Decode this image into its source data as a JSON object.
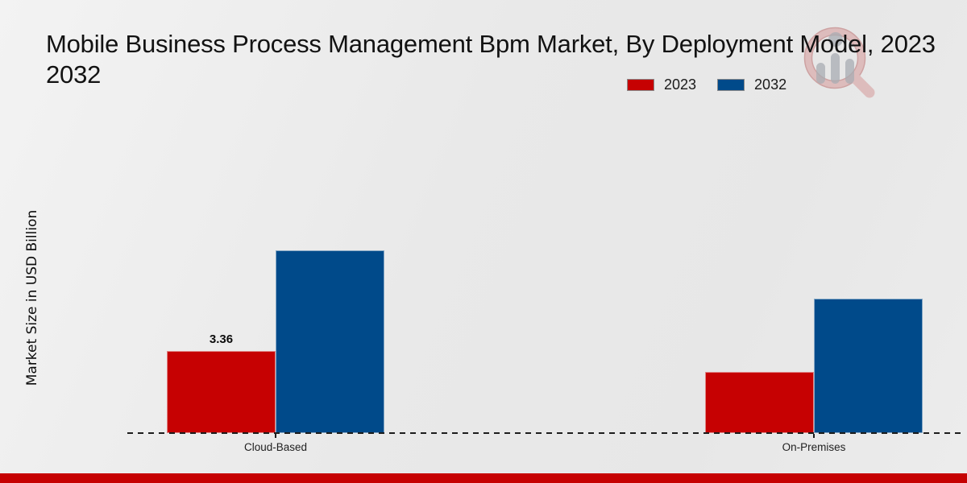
{
  "header": {
    "title_line1": "Mobile Business Process Management Bpm Market, By Deployment Model, 2023",
    "title_line2": "2032"
  },
  "chart_data": {
    "type": "bar",
    "title": "Mobile Business Process Management Bpm Market, By Deployment Model, 2023 2032",
    "categories": [
      "Cloud-Based",
      "On-Premises"
    ],
    "series": [
      {
        "name": "2023",
        "color": "#c60102",
        "values": [
          3.36,
          2.5
        ],
        "labels": [
          "3.36",
          ""
        ]
      },
      {
        "name": "2032",
        "color": "#004a8a",
        "values": [
          7.48,
          5.5
        ],
        "labels": [
          "",
          ""
        ]
      }
    ],
    "xlabel": "",
    "ylabel": "Market Size in USD Billion",
    "ylim": [
      0,
      8
    ],
    "grid": false,
    "axis_ticks_shown": false,
    "baseline_style": "dashed",
    "legend_position": "top-right"
  },
  "watermark": {
    "icon": "magnifier-bar-chart-logo"
  },
  "footer": {
    "bar_color": "#c60102"
  },
  "colors": {
    "series_2023": "#c60102",
    "series_2032": "#004a8a",
    "background": "#eaeaea",
    "text": "#111111"
  }
}
